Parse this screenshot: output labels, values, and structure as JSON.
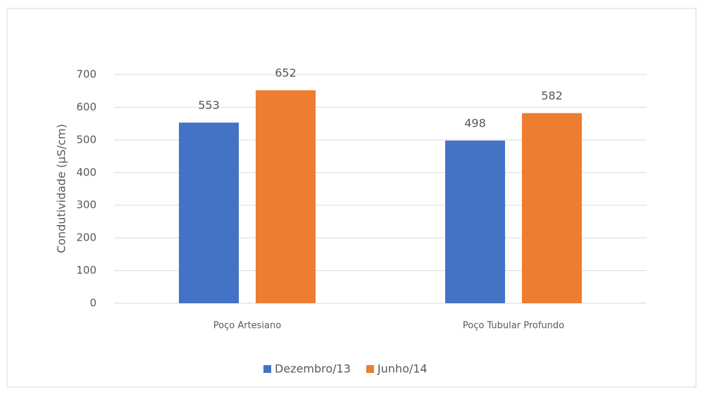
{
  "chart_data": {
    "type": "bar",
    "categories": [
      "Poço Artesiano",
      "Poço Tubular Profundo"
    ],
    "series": [
      {
        "name": "Dezembro/13",
        "color": "#4472c4",
        "values": [
          553,
          498
        ]
      },
      {
        "name": "Junho/14",
        "color": "#ed7d31",
        "values": [
          652,
          582
        ]
      }
    ],
    "y_label": "Condutividade (µS/cm)",
    "ylim": [
      0,
      700
    ],
    "yticks": [
      0,
      100,
      200,
      300,
      400,
      500,
      600,
      700
    ],
    "grid": true,
    "legend": "bottom"
  }
}
